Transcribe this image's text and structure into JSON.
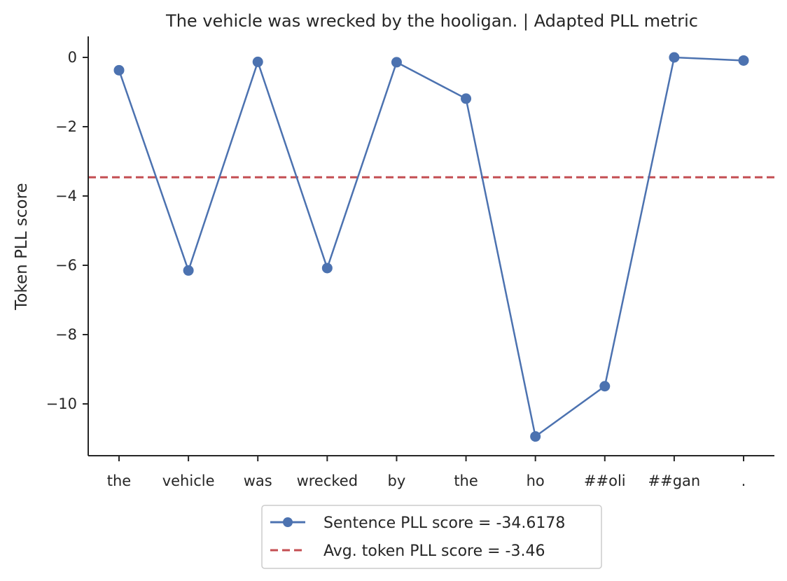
{
  "chart_data": {
    "type": "line",
    "title": "The vehicle was wrecked by the hooligan. | Adapted PLL metric",
    "xlabel": "",
    "ylabel": "Token PLL score",
    "categories": [
      "the",
      "vehicle",
      "was",
      "wrecked",
      "by",
      "the",
      "ho",
      "##oli",
      "##gan",
      "."
    ],
    "series": [
      {
        "name": "Sentence PLL score = -34.6178",
        "values": [
          -0.37,
          -6.15,
          -0.13,
          -6.08,
          -0.14,
          -1.19,
          -10.94,
          -9.49,
          0.0,
          -0.09
        ],
        "color": "#4c72b0",
        "marker": "circle",
        "style": "solid"
      }
    ],
    "reference_line": {
      "name": "Avg. token PLL score = -3.46",
      "value": -3.46,
      "color": "#c44e52",
      "style": "dashed"
    },
    "yticks": [
      0,
      -2,
      -4,
      -6,
      -8,
      -10
    ],
    "ytick_labels": [
      "0",
      "−2",
      "−4",
      "−6",
      "−8",
      "−10"
    ],
    "ylim": [
      -11.5,
      0.6
    ],
    "grid": false,
    "legend_position": "bottom-center"
  }
}
